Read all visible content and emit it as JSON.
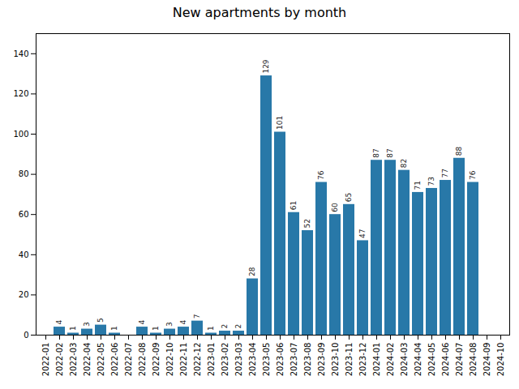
{
  "chart_data": {
    "type": "bar",
    "title": "New apartments by month",
    "categories": [
      "2022-01",
      "2022-02",
      "2022-03",
      "2022-04",
      "2022-05",
      "2022-06",
      "2022-07",
      "2022-08",
      "2022-09",
      "2022-10",
      "2022-11",
      "2022-12",
      "2023-01",
      "2023-02",
      "2023-03",
      "2023-04",
      "2023-05",
      "2023-06",
      "2023-07",
      "2023-08",
      "2023-09",
      "2023-10",
      "2023-11",
      "2023-12",
      "2024-01",
      "2024-02",
      "2024-03",
      "2024-04",
      "2024-05",
      "2024-06",
      "2024-07",
      "2024-08",
      "2024-09",
      "2024-10"
    ],
    "values": [
      0,
      4,
      1,
      3,
      5,
      1,
      0,
      4,
      1,
      3,
      4,
      7,
      1,
      2,
      2,
      28,
      129,
      101,
      61,
      52,
      76,
      60,
      65,
      47,
      87,
      87,
      82,
      71,
      73,
      77,
      88,
      76,
      0,
      0
    ],
    "value_labels": [
      null,
      "4",
      "1",
      "3",
      "5",
      "1",
      null,
      "4",
      "1",
      "3",
      "4",
      "7",
      "1",
      "2",
      "2",
      "28",
      "129",
      "101",
      "61",
      "52",
      "76",
      "60",
      "65",
      "47",
      "87",
      "87",
      "82",
      "71",
      "73",
      "77",
      "88",
      "76",
      null,
      null
    ],
    "color": "#2878a8",
    "ylim": [
      0,
      150
    ],
    "yticks": [
      0,
      20,
      40,
      60,
      80,
      100,
      120,
      140
    ],
    "data_labels": true,
    "grid": false
  }
}
